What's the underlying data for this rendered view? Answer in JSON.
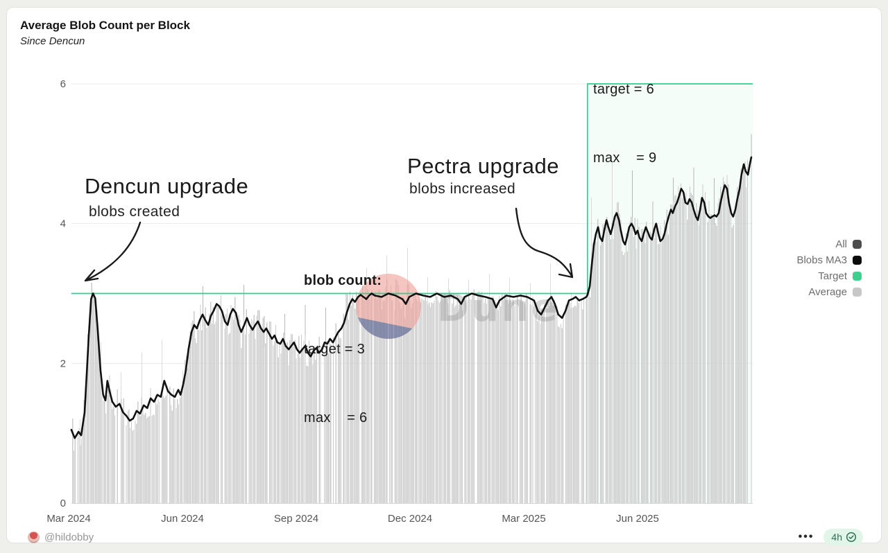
{
  "header": {
    "title": "Average Blob Count per Block",
    "subtitle": "Since Dencun"
  },
  "annotations": {
    "dencun": {
      "title": "Dencun upgrade",
      "subtitle": "blobs created"
    },
    "pectra": {
      "title": "Pectra upgrade",
      "subtitle": "blobs increased"
    },
    "blob_count": {
      "heading": "blob count:",
      "line1": "target = 3",
      "line2": "max    = 6"
    },
    "new_params": {
      "line1": "target = 6",
      "line2": "max    = 9"
    }
  },
  "legend": {
    "items": [
      {
        "label": "All",
        "color": "#4d4d4d"
      },
      {
        "label": "Blobs MA3",
        "color": "#0b0b0b"
      },
      {
        "label": "Target",
        "color": "#3ecf8e"
      },
      {
        "label": "Average",
        "color": "#c7c7c7"
      }
    ]
  },
  "footer": {
    "author": "@hildobby",
    "menu": "•••",
    "updated": "4h"
  },
  "watermark": {
    "text": "Dune",
    "circle_pink": "#efa29b",
    "circle_navy": "#525c8c",
    "text_color": "#8d8d8d"
  },
  "chart_data": {
    "type": "bar",
    "note": "x = months since 2024-03-01; gray bars = daily average blob count, black line = 3-day moving average, green step line = protocol target",
    "title": "Average Blob Count per Block",
    "subtitle": "Since Dencun",
    "xlabel": "",
    "ylabel": "",
    "ylim": [
      0,
      6
    ],
    "y_ticks": [
      0,
      2,
      4,
      6
    ],
    "x_ticks": [
      {
        "m": 0,
        "label": "Mar 2024"
      },
      {
        "m": 3,
        "label": "Jun 2024"
      },
      {
        "m": 6,
        "label": "Sep 2024"
      },
      {
        "m": 9,
        "label": "Dec 2024"
      },
      {
        "m": 12,
        "label": "Mar 2025"
      },
      {
        "m": 15,
        "label": "Jun 2025"
      }
    ],
    "grid": true,
    "legend_position": "right",
    "target_segments": [
      {
        "m_start": 0.07,
        "m_end": 13.68,
        "value": 3
      },
      {
        "m_start": 13.68,
        "m_end": 18.04,
        "value": 6
      }
    ],
    "bars": {
      "pitch_months": 0.0337,
      "noise_amp": 0.24,
      "flat_noise_amp": 0.13,
      "skip_rate": 0.065,
      "spike_every": 16,
      "color": "#cbcbcb",
      "spike_color": "#b7b7b7",
      "flat_region": [
        9.0,
        13.68
      ],
      "last_spike_value": 5.28
    },
    "line_color": "#111111",
    "target_color": "#2fcf8e",
    "series_ma3": {
      "name": "Blobs MA3",
      "points": [
        [
          0.07,
          1.05
        ],
        [
          0.16,
          0.93
        ],
        [
          0.26,
          1.02
        ],
        [
          0.33,
          0.97
        ],
        [
          0.42,
          1.3
        ],
        [
          0.53,
          2.4
        ],
        [
          0.59,
          2.92
        ],
        [
          0.64,
          3.0
        ],
        [
          0.7,
          2.93
        ],
        [
          0.77,
          2.45
        ],
        [
          0.84,
          1.9
        ],
        [
          0.91,
          1.55
        ],
        [
          0.97,
          1.47
        ],
        [
          1.02,
          1.75
        ],
        [
          1.08,
          1.6
        ],
        [
          1.15,
          1.45
        ],
        [
          1.24,
          1.38
        ],
        [
          1.34,
          1.42
        ],
        [
          1.43,
          1.3
        ],
        [
          1.52,
          1.25
        ],
        [
          1.61,
          1.18
        ],
        [
          1.7,
          1.21
        ],
        [
          1.79,
          1.32
        ],
        [
          1.88,
          1.28
        ],
        [
          1.98,
          1.4
        ],
        [
          2.07,
          1.36
        ],
        [
          2.16,
          1.5
        ],
        [
          2.25,
          1.45
        ],
        [
          2.34,
          1.55
        ],
        [
          2.43,
          1.52
        ],
        [
          2.52,
          1.75
        ],
        [
          2.62,
          1.6
        ],
        [
          2.71,
          1.55
        ],
        [
          2.8,
          1.52
        ],
        [
          2.89,
          1.62
        ],
        [
          2.95,
          1.55
        ],
        [
          3.02,
          1.7
        ],
        [
          3.09,
          1.9
        ],
        [
          3.16,
          2.2
        ],
        [
          3.24,
          2.45
        ],
        [
          3.31,
          2.55
        ],
        [
          3.38,
          2.5
        ],
        [
          3.46,
          2.62
        ],
        [
          3.53,
          2.7
        ],
        [
          3.6,
          2.62
        ],
        [
          3.68,
          2.55
        ],
        [
          3.75,
          2.68
        ],
        [
          3.82,
          2.75
        ],
        [
          3.9,
          2.85
        ],
        [
          3.97,
          2.82
        ],
        [
          4.04,
          2.75
        ],
        [
          4.12,
          2.6
        ],
        [
          4.19,
          2.55
        ],
        [
          4.26,
          2.7
        ],
        [
          4.33,
          2.78
        ],
        [
          4.41,
          2.72
        ],
        [
          4.48,
          2.55
        ],
        [
          4.55,
          2.45
        ],
        [
          4.63,
          2.55
        ],
        [
          4.7,
          2.65
        ],
        [
          4.77,
          2.55
        ],
        [
          4.85,
          2.48
        ],
        [
          4.92,
          2.55
        ],
        [
          4.99,
          2.6
        ],
        [
          5.07,
          2.5
        ],
        [
          5.14,
          2.45
        ],
        [
          5.21,
          2.5
        ],
        [
          5.29,
          2.42
        ],
        [
          5.36,
          2.35
        ],
        [
          5.43,
          2.4
        ],
        [
          5.5,
          2.3
        ],
        [
          5.58,
          2.28
        ],
        [
          5.65,
          2.35
        ],
        [
          5.72,
          2.25
        ],
        [
          5.8,
          2.2
        ],
        [
          5.87,
          2.25
        ],
        [
          5.94,
          2.3
        ],
        [
          6.02,
          2.2
        ],
        [
          6.09,
          2.15
        ],
        [
          6.16,
          2.2
        ],
        [
          6.24,
          2.25
        ],
        [
          6.31,
          2.15
        ],
        [
          6.38,
          2.1
        ],
        [
          6.46,
          2.18
        ],
        [
          6.53,
          2.22
        ],
        [
          6.6,
          2.15
        ],
        [
          6.68,
          2.2
        ],
        [
          6.75,
          2.3
        ],
        [
          6.82,
          2.28
        ],
        [
          6.89,
          2.35
        ],
        [
          6.97,
          2.3
        ],
        [
          7.04,
          2.38
        ],
        [
          7.11,
          2.45
        ],
        [
          7.19,
          2.5
        ],
        [
          7.26,
          2.58
        ],
        [
          7.33,
          2.72
        ],
        [
          7.41,
          2.85
        ],
        [
          7.48,
          2.92
        ],
        [
          7.55,
          2.88
        ],
        [
          7.63,
          2.95
        ],
        [
          7.7,
          2.98
        ],
        [
          7.77,
          2.95
        ],
        [
          7.85,
          2.92
        ],
        [
          7.92,
          2.97
        ],
        [
          7.99,
          3.0
        ],
        [
          8.07,
          2.97
        ],
        [
          8.25,
          2.95
        ],
        [
          8.43,
          3.0
        ],
        [
          8.62,
          2.97
        ],
        [
          8.8,
          2.92
        ],
        [
          8.89,
          2.85
        ],
        [
          8.98,
          2.95
        ],
        [
          9.16,
          3.0
        ],
        [
          9.35,
          2.97
        ],
        [
          9.53,
          2.95
        ],
        [
          9.71,
          3.0
        ],
        [
          9.9,
          2.95
        ],
        [
          10.08,
          2.97
        ],
        [
          10.26,
          2.92
        ],
        [
          10.35,
          2.85
        ],
        [
          10.44,
          2.95
        ],
        [
          10.63,
          3.0
        ],
        [
          10.81,
          2.97
        ],
        [
          10.99,
          2.95
        ],
        [
          11.18,
          2.92
        ],
        [
          11.27,
          2.8
        ],
        [
          11.36,
          2.9
        ],
        [
          11.54,
          2.97
        ],
        [
          11.73,
          2.95
        ],
        [
          11.91,
          2.97
        ],
        [
          12.09,
          2.95
        ],
        [
          12.27,
          2.9
        ],
        [
          12.37,
          2.75
        ],
        [
          12.46,
          2.7
        ],
        [
          12.55,
          2.8
        ],
        [
          12.64,
          2.9
        ],
        [
          12.73,
          2.95
        ],
        [
          12.82,
          2.85
        ],
        [
          12.91,
          2.7
        ],
        [
          13.01,
          2.65
        ],
        [
          13.1,
          2.75
        ],
        [
          13.19,
          2.9
        ],
        [
          13.28,
          2.92
        ],
        [
          13.37,
          2.95
        ],
        [
          13.46,
          2.9
        ],
        [
          13.55,
          2.92
        ],
        [
          13.65,
          2.95
        ],
        [
          13.68,
          2.98
        ],
        [
          13.74,
          3.1
        ],
        [
          13.79,
          3.4
        ],
        [
          13.85,
          3.7
        ],
        [
          13.9,
          3.85
        ],
        [
          13.96,
          3.95
        ],
        [
          14.01,
          3.8
        ],
        [
          14.07,
          3.75
        ],
        [
          14.12,
          3.9
        ],
        [
          14.18,
          4.05
        ],
        [
          14.23,
          3.95
        ],
        [
          14.29,
          3.85
        ],
        [
          14.34,
          3.95
        ],
        [
          14.4,
          4.1
        ],
        [
          14.45,
          4.15
        ],
        [
          14.51,
          4.05
        ],
        [
          14.56,
          3.9
        ],
        [
          14.62,
          3.75
        ],
        [
          14.67,
          3.7
        ],
        [
          14.72,
          3.8
        ],
        [
          14.78,
          3.95
        ],
        [
          14.84,
          4.0
        ],
        [
          14.89,
          3.95
        ],
        [
          14.95,
          3.85
        ],
        [
          15.0,
          3.9
        ],
        [
          15.05,
          3.8
        ],
        [
          15.11,
          3.75
        ],
        [
          15.16,
          3.85
        ],
        [
          15.22,
          3.95
        ],
        [
          15.27,
          3.88
        ],
        [
          15.33,
          3.8
        ],
        [
          15.38,
          3.77
        ],
        [
          15.44,
          3.92
        ],
        [
          15.49,
          4.0
        ],
        [
          15.55,
          3.85
        ],
        [
          15.6,
          3.75
        ],
        [
          15.66,
          3.78
        ],
        [
          15.71,
          3.85
        ],
        [
          15.77,
          4.0
        ],
        [
          15.82,
          4.1
        ],
        [
          15.88,
          4.2
        ],
        [
          15.93,
          4.15
        ],
        [
          15.99,
          4.25
        ],
        [
          16.04,
          4.3
        ],
        [
          16.1,
          4.4
        ],
        [
          16.15,
          4.5
        ],
        [
          16.21,
          4.45
        ],
        [
          16.26,
          4.3
        ],
        [
          16.32,
          4.28
        ],
        [
          16.37,
          4.35
        ],
        [
          16.43,
          4.3
        ],
        [
          16.48,
          4.2
        ],
        [
          16.54,
          4.1
        ],
        [
          16.59,
          4.05
        ],
        [
          16.65,
          4.2
        ],
        [
          16.7,
          4.37
        ],
        [
          16.76,
          4.3
        ],
        [
          16.81,
          4.15
        ],
        [
          16.87,
          4.1
        ],
        [
          16.92,
          4.08
        ],
        [
          16.97,
          4.1
        ],
        [
          17.03,
          4.12
        ],
        [
          17.08,
          4.1
        ],
        [
          17.14,
          4.15
        ],
        [
          17.19,
          4.3
        ],
        [
          17.25,
          4.45
        ],
        [
          17.3,
          4.55
        ],
        [
          17.36,
          4.5
        ],
        [
          17.41,
          4.3
        ],
        [
          17.47,
          4.15
        ],
        [
          17.52,
          4.1
        ],
        [
          17.58,
          4.2
        ],
        [
          17.63,
          4.35
        ],
        [
          17.69,
          4.5
        ],
        [
          17.74,
          4.7
        ],
        [
          17.8,
          4.85
        ],
        [
          17.85,
          4.75
        ],
        [
          17.91,
          4.7
        ],
        [
          17.96,
          4.85
        ],
        [
          18.0,
          4.95
        ]
      ]
    }
  }
}
